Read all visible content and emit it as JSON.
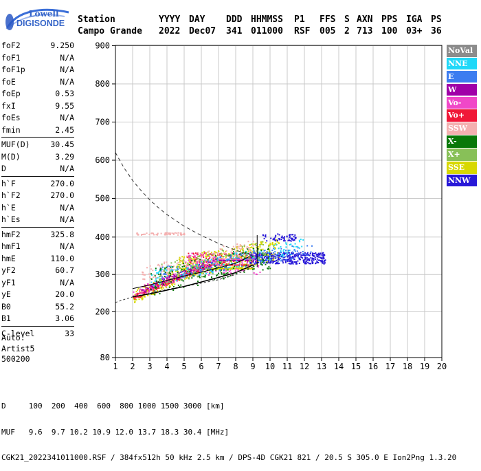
{
  "logo": {
    "line1": "Lowell",
    "line2": "DIGISONDE"
  },
  "header": {
    "labels": [
      "Station",
      "YYYY",
      "DAY",
      "DDD",
      "HHMMSS",
      "P1",
      "FFS",
      "S",
      "AXN",
      "PPS",
      "IGA",
      "PS"
    ],
    "values": [
      "Campo Grande",
      "2022",
      "Dec07",
      "341",
      "011000",
      "RSF",
      "005",
      "2",
      "713",
      "100",
      "03+",
      "36"
    ]
  },
  "params_group1": [
    {
      "label": "foF2",
      "value": "9.250"
    },
    {
      "label": "foF1",
      "value": "N/A"
    },
    {
      "label": "foF1p",
      "value": "N/A"
    },
    {
      "label": "foE",
      "value": "N/A"
    },
    {
      "label": "foEp",
      "value": "0.53"
    },
    {
      "label": "fxI",
      "value": "9.55"
    },
    {
      "label": "foEs",
      "value": "N/A"
    },
    {
      "label": "fmin",
      "value": "2.45"
    }
  ],
  "params_group2": [
    {
      "label": "MUF(D)",
      "value": "30.45"
    },
    {
      "label": "M(D)",
      "value": "3.29"
    },
    {
      "label": "D",
      "value": "N/A"
    }
  ],
  "params_group3": [
    {
      "label": "h`F",
      "value": "270.0"
    },
    {
      "label": "h`F2",
      "value": "270.0"
    },
    {
      "label": "h`E",
      "value": "N/A"
    },
    {
      "label": "h`Es",
      "value": "N/A"
    }
  ],
  "params_group4": [
    {
      "label": "hmF2",
      "value": "325.8"
    },
    {
      "label": "hmF1",
      "value": "N/A"
    },
    {
      "label": "hmE",
      "value": "110.0"
    },
    {
      "label": "yF2",
      "value": "60.7"
    },
    {
      "label": "yF1",
      "value": "N/A"
    },
    {
      "label": "yE",
      "value": "20.0"
    },
    {
      "label": "B0",
      "value": "55.2"
    },
    {
      "label": "B1",
      "value": "3.06"
    }
  ],
  "params_group5": [
    {
      "label": "C-level",
      "value": "33"
    }
  ],
  "auto_block": {
    "line1": "Auto:",
    "line2": "Artist5",
    "line3": "500200"
  },
  "legend": [
    {
      "label": "NoVal",
      "color": "#8c8c8c",
      "text_color": "#ffffff"
    },
    {
      "label": "NNE",
      "color": "#20d8f8",
      "text_color": "#ffffff"
    },
    {
      "label": "E",
      "color": "#3c7cf0",
      "text_color": "#ffffff"
    },
    {
      "label": "W",
      "color": "#a000a8",
      "text_color": "#ffffff"
    },
    {
      "label": "Vo-",
      "color": "#f048c8",
      "text_color": "#ffffff"
    },
    {
      "label": "Vo+",
      "color": "#f01838",
      "text_color": "#ffffff"
    },
    {
      "label": "SSW",
      "color": "#f4b0b0",
      "text_color": "#ffffff"
    },
    {
      "label": "X-",
      "color": "#087808",
      "text_color": "#ffffff"
    },
    {
      "label": "X+",
      "color": "#88c058",
      "text_color": "#ffffff"
    },
    {
      "label": "SSE",
      "color": "#d8d800",
      "text_color": "#ffffff"
    },
    {
      "label": "NNW",
      "color": "#2818d8",
      "text_color": "#ffffff"
    }
  ],
  "footer": {
    "line1": "D     100  200  400  600  800 1000 1500 3000 [km]",
    "line2": "MUF   9.6  9.7 10.2 10.9 12.0 13.7 18.3 30.4 [MHz]",
    "line3": "CGK21_2022341011000.RSF / 384fx512h 50 kHz 2.5 km / DPS-4D CGK21 821 / 20.5 S 305.0 E Ion2Png 1.3.20"
  },
  "chart_data": {
    "type": "scatter",
    "xlim": [
      1,
      20
    ],
    "ylim": [
      80,
      900
    ],
    "x_ticks": [
      1,
      2,
      3,
      4,
      5,
      6,
      7,
      8,
      9,
      10,
      11,
      12,
      13,
      14,
      15,
      16,
      17,
      18,
      19,
      20
    ],
    "y_ticks": [
      80,
      200,
      300,
      400,
      500,
      600,
      700,
      800,
      900
    ],
    "grid": true,
    "legend_position": "right",
    "series": [
      {
        "name": "SSE",
        "color": "#d8d800",
        "clusters": [
          {
            "x0": 2.0,
            "x1": 9.0,
            "y0": 240,
            "y1": 300,
            "slope": 22,
            "spread": 35,
            "count": 420
          },
          {
            "x0": 4.5,
            "x1": 10.5,
            "y0": 320,
            "y1": 470,
            "slope": 8,
            "spread": 60,
            "count": 420
          }
        ]
      },
      {
        "name": "NNW",
        "color": "#2818d8",
        "clusters": [
          {
            "x0": 8.8,
            "x1": 13.2,
            "y0": 345,
            "y1": 400,
            "slope": 0,
            "spread": 30,
            "count": 380
          },
          {
            "x0": 9.5,
            "x1": 11.5,
            "y0": 400,
            "y1": 460,
            "slope": 0,
            "spread": 20,
            "count": 60
          }
        ]
      },
      {
        "name": "Vo+",
        "color": "#f01838",
        "clusters": [
          {
            "x0": 2.0,
            "x1": 9.0,
            "y0": 240,
            "y1": 320,
            "slope": 20,
            "spread": 14,
            "count": 260
          },
          {
            "x0": 5.0,
            "x1": 9.0,
            "y0": 345,
            "y1": 400,
            "slope": 0,
            "spread": 30,
            "count": 80
          }
        ]
      },
      {
        "name": "Vo-",
        "color": "#f048c8",
        "clusters": [
          {
            "x0": 2.0,
            "x1": 9.0,
            "y0": 250,
            "y1": 330,
            "slope": 18,
            "spread": 25,
            "count": 200
          },
          {
            "x0": 5.0,
            "x1": 9.5,
            "y0": 330,
            "y1": 470,
            "slope": 0,
            "spread": 60,
            "count": 120
          }
        ]
      },
      {
        "name": "SSW",
        "color": "#f4b0b0",
        "clusters": [
          {
            "x0": 2.2,
            "x1": 5.0,
            "y0": 410,
            "y1": 420,
            "slope": 0,
            "spread": 6,
            "count": 60
          },
          {
            "x0": 2.5,
            "x1": 9.0,
            "y0": 300,
            "y1": 370,
            "slope": 12,
            "spread": 40,
            "count": 140
          }
        ]
      },
      {
        "name": "W",
        "color": "#a000a8",
        "clusters": [
          {
            "x0": 2.5,
            "x1": 9.0,
            "y0": 260,
            "y1": 330,
            "slope": 18,
            "spread": 18,
            "count": 160
          }
        ]
      },
      {
        "name": "NNE",
        "color": "#20d8f8",
        "clusters": [
          {
            "x0": 3.0,
            "x1": 12.0,
            "y0": 290,
            "y1": 390,
            "slope": 10,
            "spread": 40,
            "count": 160
          }
        ]
      },
      {
        "name": "E",
        "color": "#3c7cf0",
        "clusters": [
          {
            "x0": 3.5,
            "x1": 12.5,
            "y0": 300,
            "y1": 400,
            "slope": 8,
            "spread": 40,
            "count": 140
          }
        ]
      },
      {
        "name": "X-",
        "color": "#087808",
        "clusters": [
          {
            "x0": 3.0,
            "x1": 10.0,
            "y0": 280,
            "y1": 480,
            "slope": 10,
            "spread": 70,
            "count": 160
          }
        ]
      },
      {
        "name": "X+",
        "color": "#88c058",
        "clusters": [
          {
            "x0": 3.5,
            "x1": 10.0,
            "y0": 300,
            "y1": 470,
            "slope": 10,
            "spread": 60,
            "count": 130
          }
        ]
      }
    ],
    "trace_curve": [
      [
        2.0,
        240
      ],
      [
        3,
        248
      ],
      [
        4,
        258
      ],
      [
        5,
        268
      ],
      [
        6,
        280
      ],
      [
        7,
        292
      ],
      [
        8,
        305
      ],
      [
        9,
        325
      ]
    ],
    "inner_trace": [
      [
        2.0,
        262
      ],
      [
        3,
        272
      ],
      [
        4,
        284
      ],
      [
        5,
        296
      ],
      [
        6,
        306
      ],
      [
        7,
        318
      ],
      [
        8,
        330
      ],
      [
        8.8,
        348
      ]
    ],
    "dashed_curve": [
      [
        1.0,
        620
      ],
      [
        1.5,
        580
      ],
      [
        2,
        547
      ],
      [
        2.5,
        520
      ],
      [
        3,
        496
      ],
      [
        3.5,
        476
      ],
      [
        4,
        458
      ],
      [
        5,
        428
      ],
      [
        6,
        404
      ],
      [
        7,
        383
      ],
      [
        8,
        365
      ],
      [
        9,
        350
      ]
    ],
    "solid_lower": [
      [
        1.0,
        225
      ],
      [
        1.5,
        233
      ],
      [
        2,
        240
      ],
      [
        3,
        250
      ],
      [
        4,
        260
      ],
      [
        5,
        268
      ],
      [
        6,
        277
      ],
      [
        7,
        286
      ],
      [
        8,
        300
      ],
      [
        9,
        320
      ]
    ]
  }
}
